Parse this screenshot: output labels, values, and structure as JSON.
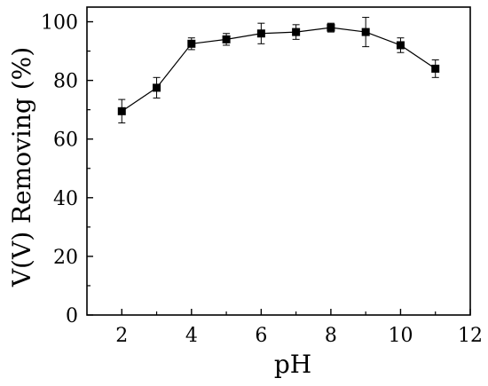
{
  "chart_data": {
    "type": "line",
    "title": "",
    "xlabel": "pH",
    "ylabel": "V(V) Removing (%)",
    "xlim": [
      1,
      12
    ],
    "ylim": [
      0,
      105
    ],
    "xticks": [
      2,
      4,
      6,
      8,
      10,
      12
    ],
    "yticks": [
      0,
      20,
      40,
      60,
      80,
      100
    ],
    "grid": false,
    "legend": "none",
    "colors": {
      "line": "#000000",
      "marker": "#000000"
    },
    "series": [
      {
        "x": [
          2,
          3,
          4,
          5,
          6,
          7,
          8,
          9,
          10,
          11
        ],
        "y": [
          69.5,
          77.5,
          92.5,
          94,
          96,
          96.5,
          98,
          96.5,
          92,
          84
        ],
        "err": [
          4,
          3.5,
          2,
          2,
          3.5,
          2.5,
          1.5,
          5,
          2.5,
          3
        ]
      }
    ]
  }
}
